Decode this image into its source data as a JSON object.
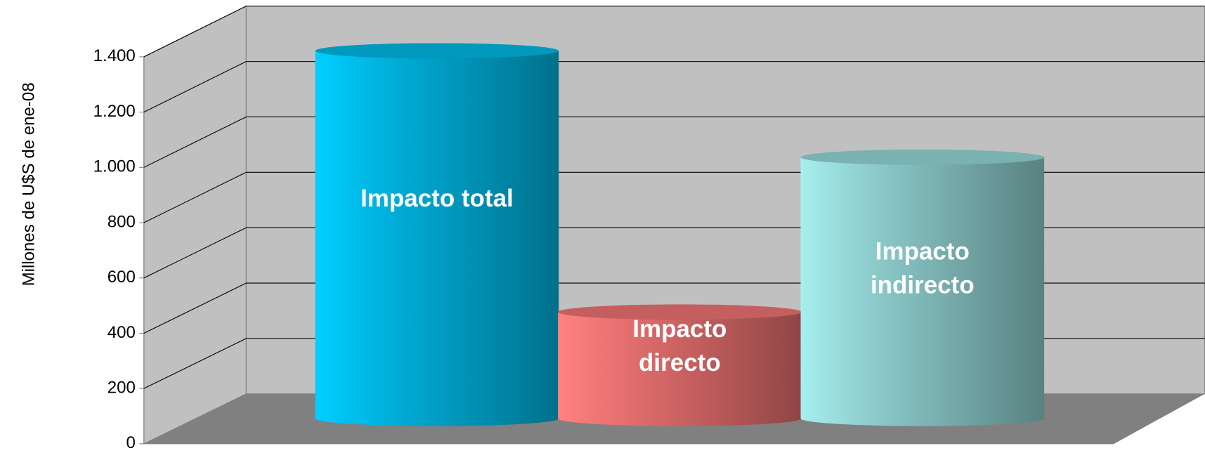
{
  "chart_data": {
    "type": "cylinder",
    "y_label": "Millones de U$S de ene-08",
    "categories": [
      "Impacto total",
      "Impacto directo",
      "Impacto indirecto"
    ],
    "values": [
      1330,
      385,
      945
    ],
    "colors": [
      "#00b4e0",
      "#e87070",
      "#90d0d0"
    ],
    "ylim": [
      0,
      1400
    ],
    "yticks": [
      0,
      200,
      400,
      600,
      800,
      {
        "value": 1000,
        "label": "1.000"
      },
      {
        "value": 1200,
        "label": "1.200"
      },
      {
        "value": 1400,
        "label": "1.400"
      }
    ],
    "grid": true
  }
}
